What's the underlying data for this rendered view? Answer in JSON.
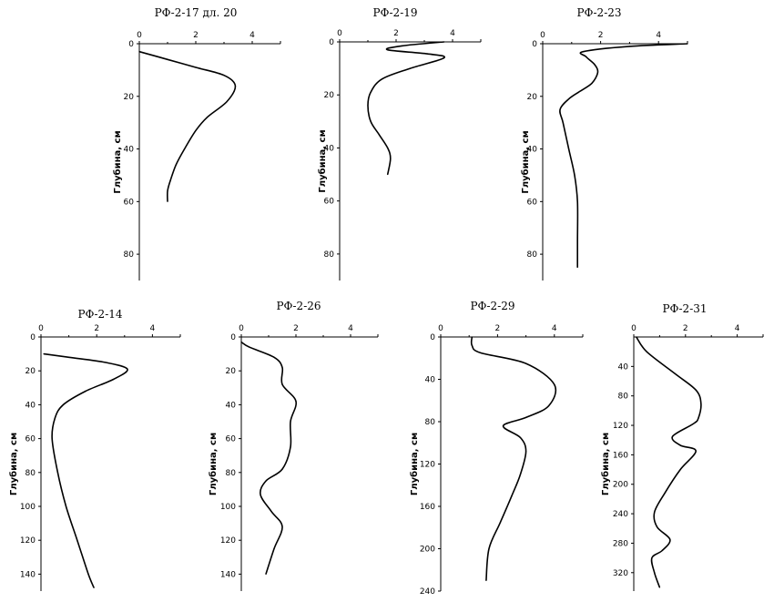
{
  "chart_data": [
    {
      "type": "line",
      "title": "РФ-2-17 дл. 20",
      "ylabel": "Глубина, см",
      "xlim": [
        0,
        5
      ],
      "ylim": [
        90,
        0
      ],
      "xticks": [
        0,
        2,
        4
      ],
      "yticks": [
        0,
        20,
        40,
        60,
        80
      ],
      "x": [
        0,
        1.0,
        2.0,
        3.0,
        3.4,
        3.1,
        2.4,
        2.0,
        1.6,
        1.3,
        1.1,
        1.0,
        1.0
      ],
      "y": [
        3,
        6,
        9,
        12,
        16,
        22,
        28,
        33,
        40,
        46,
        52,
        56,
        60
      ]
    },
    {
      "type": "line",
      "title": "РФ-2-19",
      "ylabel": "Глубина, см",
      "xlim": [
        0,
        5
      ],
      "ylim": [
        90,
        0
      ],
      "xticks": [
        0,
        2,
        4
      ],
      "yticks": [
        0,
        20,
        40,
        60,
        80
      ],
      "x": [
        3.7,
        2.2,
        1.7,
        3.1,
        3.7,
        2.5,
        1.5,
        1.1,
        1.0,
        1.1,
        1.4,
        1.7,
        1.8,
        1.7
      ],
      "y": [
        0,
        1.5,
        3,
        4.5,
        6,
        10,
        14,
        19,
        24,
        30,
        35,
        40,
        44,
        50
      ]
    },
    {
      "type": "line",
      "title": "РФ-2-23",
      "ylabel": "Глубина, см",
      "xlim": [
        0,
        5
      ],
      "ylim": [
        90,
        0
      ],
      "xticks": [
        0,
        2,
        4
      ],
      "yticks": [
        0,
        20,
        40,
        60,
        80
      ],
      "x": [
        5.0,
        3.0,
        1.4,
        1.5,
        1.8,
        1.9,
        1.7,
        1.3,
        0.9,
        0.6,
        0.7,
        0.9,
        1.1,
        1.2,
        1.2,
        1.2
      ],
      "y": [
        0,
        1,
        3,
        5,
        8,
        11,
        15,
        18,
        21,
        25,
        30,
        40,
        50,
        60,
        75,
        85
      ]
    },
    {
      "type": "line",
      "title": "РФ-2-14",
      "ylabel": "Глубина, см",
      "xlim": [
        0,
        5
      ],
      "ylim": [
        150,
        0
      ],
      "xticks": [
        0,
        2,
        4
      ],
      "yticks": [
        0,
        20,
        40,
        60,
        80,
        100,
        120,
        140
      ],
      "x": [
        0.1,
        1.0,
        2.3,
        3.1,
        2.6,
        1.6,
        0.8,
        0.5,
        0.4,
        0.6,
        0.9,
        1.3,
        1.7,
        1.9
      ],
      "y": [
        10,
        12,
        15,
        19,
        25,
        32,
        40,
        48,
        60,
        80,
        100,
        120,
        140,
        148
      ]
    },
    {
      "type": "line",
      "title": "РФ-2-26",
      "ylabel": "Глубина, см",
      "xlim": [
        0,
        5
      ],
      "ylim": [
        150,
        0
      ],
      "xticks": [
        0,
        2,
        4
      ],
      "yticks": [
        0,
        20,
        40,
        60,
        80,
        100,
        120,
        140
      ],
      "x": [
        0.0,
        0.3,
        1.2,
        1.5,
        1.5,
        2.0,
        1.8,
        1.8,
        1.5,
        0.9,
        0.7,
        1.1,
        1.5,
        1.2,
        0.9
      ],
      "y": [
        3,
        6,
        12,
        18,
        28,
        38,
        50,
        65,
        78,
        85,
        93,
        103,
        112,
        125,
        140
      ]
    },
    {
      "type": "line",
      "title": "РФ-2-29",
      "ylabel": "Глубина, см",
      "xlim": [
        0,
        5
      ],
      "ylim": [
        240,
        0
      ],
      "xticks": [
        0,
        2,
        4
      ],
      "yticks": [
        0,
        40,
        80,
        120,
        160,
        200,
        240
      ],
      "x": [
        1.1,
        1.1,
        1.4,
        3.0,
        4.0,
        3.8,
        3.0,
        2.2,
        2.8,
        3.0,
        2.8,
        2.5,
        2.1,
        1.7,
        1.6
      ],
      "y": [
        0,
        8,
        15,
        25,
        45,
        65,
        76,
        84,
        95,
        108,
        130,
        150,
        175,
        200,
        230
      ]
    },
    {
      "type": "line",
      "title": "РФ-2-31",
      "ylabel": "Глубина, см",
      "xlim": [
        0,
        5
      ],
      "ylim": [
        345,
        0
      ],
      "xticks": [
        0,
        2,
        4
      ],
      "yticks": [
        40,
        80,
        120,
        160,
        200,
        240,
        280,
        320
      ],
      "x": [
        0.1,
        0.5,
        1.6,
        2.4,
        2.6,
        2.5,
        2.3,
        1.5,
        1.8,
        2.4,
        1.8,
        1.2,
        0.8,
        0.9,
        1.4,
        1.1,
        0.7,
        0.8,
        1.0
      ],
      "y": [
        0,
        20,
        50,
        72,
        90,
        110,
        118,
        135,
        147,
        155,
        180,
        212,
        238,
        258,
        275,
        290,
        300,
        320,
        340
      ]
    }
  ]
}
